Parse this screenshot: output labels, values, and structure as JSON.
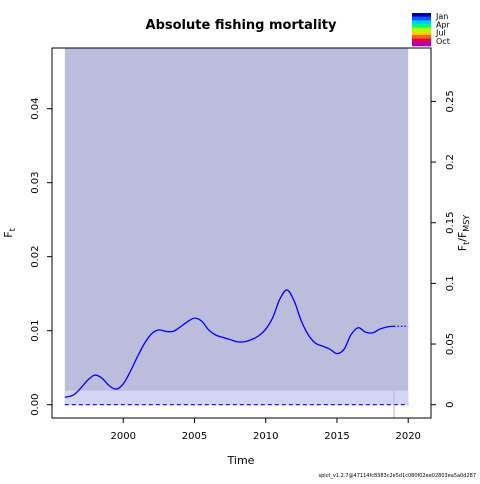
{
  "chart_data": {
    "type": "line",
    "title": "Absolute fishing mortality",
    "xlabel": "Time",
    "ylabel_left": {
      "base": "F",
      "sub": "t"
    },
    "ylabel_right": {
      "base": "F",
      "sub": "t",
      "mid": "/F",
      "sub2": "MSY"
    },
    "xlim": [
      1995.0,
      2021.6
    ],
    "ylim": [
      -0.0018,
      0.0482
    ],
    "right_scale_factor": 6.1,
    "x_ticks": [
      2000,
      2005,
      2010,
      2015,
      2020
    ],
    "x_tick_labels": [
      "2000",
      "2005",
      "2010",
      "2015",
      "2020"
    ],
    "y_ticks": [
      0.0,
      0.01,
      0.02,
      0.03,
      0.04
    ],
    "y_tick_labels": [
      "0.00",
      "0.01",
      "0.02",
      "0.03",
      "0.04"
    ],
    "y2_ticks": [
      0,
      0.05,
      0.1,
      0.15,
      0.2,
      0.25
    ],
    "y2_tick_labels": [
      "0",
      "0.05",
      "0.1",
      "0.15",
      "0.2",
      "0.25"
    ],
    "ci_band": {
      "x": [
        1995.9,
        2020.0
      ],
      "lower": 0.0,
      "upper": 0.0482
    },
    "fmsy_band": {
      "x": [
        1995.9,
        2020.0
      ],
      "lower": 0.0,
      "upper": 0.0019
    },
    "fmsy_line": {
      "x": [
        1995.9,
        2020.0
      ],
      "y": 0.0
    },
    "last_obs_x": 2019.0,
    "series": [
      {
        "name": "F",
        "x": [
          1995.9,
          1996.5,
          1997.0,
          1997.5,
          1998.0,
          1998.5,
          1999.0,
          1999.5,
          2000.0,
          2000.5,
          2001.0,
          2001.5,
          2002.0,
          2002.5,
          2003.0,
          2003.5,
          2004.0,
          2004.5,
          2005.0,
          2005.5,
          2006.0,
          2006.5,
          2007.0,
          2007.5,
          2008.0,
          2008.5,
          2009.0,
          2009.5,
          2010.0,
          2010.5,
          2011.0,
          2011.5,
          2012.0,
          2012.5,
          2013.0,
          2013.5,
          2014.0,
          2014.5,
          2015.0,
          2015.5,
          2016.0,
          2016.5,
          2017.0,
          2017.5,
          2018.0,
          2018.5,
          2019.0
        ],
        "y": [
          0.001,
          0.0013,
          0.0022,
          0.0033,
          0.004,
          0.0036,
          0.0026,
          0.0021,
          0.0028,
          0.0045,
          0.0065,
          0.0083,
          0.0096,
          0.0101,
          0.0099,
          0.0099,
          0.0105,
          0.0112,
          0.0117,
          0.0113,
          0.0101,
          0.0094,
          0.0091,
          0.0088,
          0.0085,
          0.0085,
          0.0088,
          0.0093,
          0.0102,
          0.0118,
          0.0143,
          0.0155,
          0.014,
          0.0113,
          0.0094,
          0.0083,
          0.0079,
          0.0075,
          0.0069,
          0.0075,
          0.0095,
          0.0104,
          0.0098,
          0.0097,
          0.0102,
          0.0105,
          0.0106
        ]
      },
      {
        "name": "F forecast",
        "x": [
          2019.0,
          2020.0
        ],
        "y": [
          0.0106,
          0.0106
        ]
      }
    ],
    "colors": {
      "ci": "#bcbddc",
      "fmsy_band": "#d4d4f5",
      "line": "#0000ff",
      "fmsy_line": "#0000ff",
      "frame": "#000000",
      "last_obs": "#b0b0e0"
    },
    "legend": {
      "position": "top-right",
      "labels": [
        "Jan",
        "Apr",
        "Jul",
        "Oct"
      ],
      "colors": [
        "#0000b0",
        "#0060ff",
        "#00c8ff",
        "#00ff70",
        "#b0ff00",
        "#ffd000",
        "#ff6000",
        "#e00060",
        "#b000b0"
      ]
    },
    "footer": "spict_v1.2.7@47114fc8383c2e5d1c080f02ee02803ea5a0d287"
  }
}
